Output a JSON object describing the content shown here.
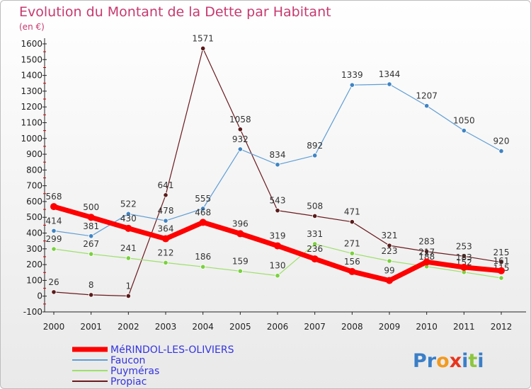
{
  "chart_data": {
    "type": "line",
    "title": "Evolution du Montant de la Dette par Habitant",
    "subtitle": "(en €)",
    "categories": [
      "2000",
      "2001",
      "2002",
      "2003",
      "2004",
      "2005",
      "2006",
      "2007",
      "2008",
      "2009",
      "2010",
      "2011",
      "2012"
    ],
    "ylim": [
      -100,
      1600
    ],
    "yticks": [
      -100,
      0,
      100,
      200,
      300,
      400,
      500,
      600,
      700,
      800,
      900,
      1000,
      1100,
      1200,
      1300,
      1400,
      1500,
      1600
    ],
    "grid": false,
    "legend_position": "bottom-left",
    "series": [
      {
        "name": "Propiac",
        "color": "#6b1a1f",
        "marker": "#5a1a1a",
        "width": 1.2,
        "values": [
          26,
          8,
          1,
          641,
          1571,
          1058,
          543,
          508,
          471,
          321,
          283,
          253,
          215
        ]
      },
      {
        "name": "Puyméras",
        "color": "#9de06a",
        "marker": "#7ad13e",
        "width": 1.2,
        "values": [
          299,
          267,
          241,
          212,
          186,
          159,
          130,
          331,
          271,
          223,
          188,
          152,
          115
        ]
      },
      {
        "name": "Faucon",
        "color": "#5f9ed6",
        "marker": "#3f84c4",
        "width": 1.2,
        "values": [
          414,
          381,
          522,
          478,
          555,
          932,
          834,
          892,
          1339,
          1344,
          1207,
          1050,
          920
        ]
      },
      {
        "name": "MéRINDOL-LES-OLIVIERS",
        "color": "#ff0000",
        "marker": "#ff0000",
        "width": 7,
        "values": [
          568,
          500,
          430,
          364,
          468,
          396,
          319,
          236,
          156,
          99,
          217,
          183,
          161
        ]
      }
    ]
  },
  "legend_order": [
    "MéRINDOL-LES-OLIVIERS",
    "Faucon",
    "Puyméras",
    "Propiac"
  ],
  "logo": {
    "text": "Proxiti"
  }
}
